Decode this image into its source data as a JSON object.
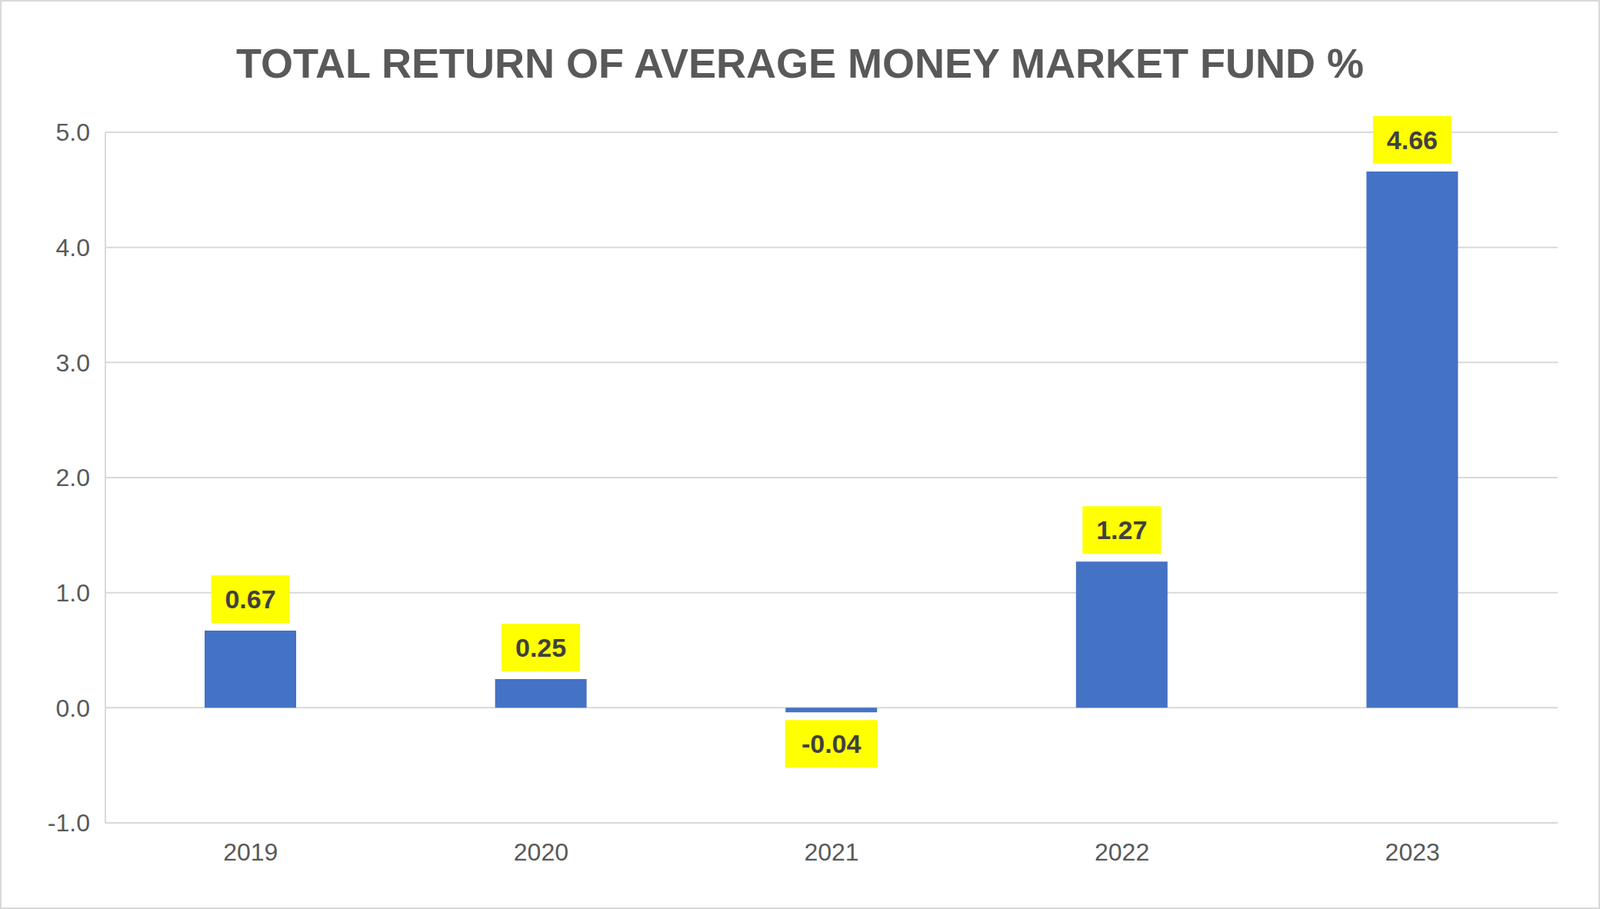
{
  "chart_data": {
    "type": "bar",
    "title": "TOTAL RETURN OF AVERAGE MONEY MARKET FUND %",
    "categories": [
      "2019",
      "2020",
      "2021",
      "2022",
      "2023"
    ],
    "values": [
      0.67,
      0.25,
      -0.04,
      1.27,
      4.66
    ],
    "color": "#4472c4",
    "ylim": [
      -1,
      5
    ],
    "yticks": [
      {
        "value": -1,
        "label": "-1.0"
      },
      {
        "value": 0,
        "label": "0.0"
      },
      {
        "value": 1,
        "label": "1.0"
      },
      {
        "value": 2,
        "label": "2.0"
      },
      {
        "value": 3,
        "label": "3.0"
      },
      {
        "value": 4,
        "label": "4.0"
      },
      {
        "value": 5,
        "label": "5.0"
      }
    ],
    "grid": true,
    "data_labels": true
  }
}
